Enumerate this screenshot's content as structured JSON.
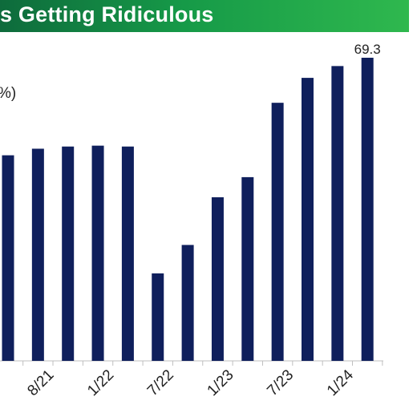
{
  "title": "s Getting Ridiculous",
  "ylabel_fragment": "%)",
  "chart_data": {
    "type": "bar",
    "categories": [
      "",
      "8/21",
      "",
      "1/22",
      "",
      "7/22",
      "",
      "1/23",
      "",
      "7/23",
      "",
      "1/24",
      ""
    ],
    "values": [
      47.0,
      48.5,
      49.0,
      49.2,
      49.0,
      20.0,
      26.5,
      37.4,
      42.0,
      59.0,
      64.7,
      67.4,
      69.3
    ],
    "data_labels": [
      "",
      "",
      "",
      "",
      "",
      "",
      "",
      "",
      "",
      "",
      "",
      "",
      "69.3"
    ],
    "ylim": [
      0,
      69.3
    ],
    "bar_color": "#0f1f5c",
    "grid": false,
    "legend": "none"
  }
}
